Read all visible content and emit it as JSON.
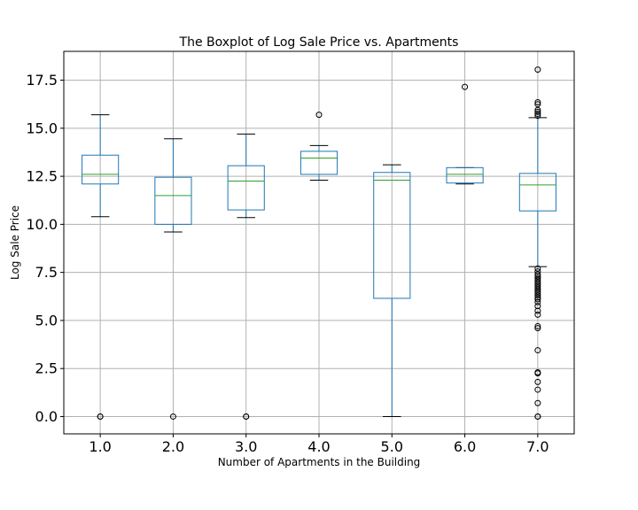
{
  "chart_data": {
    "type": "boxplot",
    "title": "The Boxplot of Log Sale Price vs. Apartments",
    "xlabel": "Number of Apartments in the Building",
    "ylabel": "Log Sale Price",
    "categories": [
      "1.0",
      "2.0",
      "3.0",
      "4.0",
      "5.0",
      "6.0",
      "7.0"
    ],
    "ylim": [
      -0.9,
      19.0
    ],
    "yticks": [
      0.0,
      2.5,
      5.0,
      7.5,
      10.0,
      12.5,
      15.0,
      17.5
    ],
    "ytick_labels": [
      "0.0",
      "2.5",
      "5.0",
      "7.5",
      "10.0",
      "12.5",
      "15.0",
      "17.5"
    ],
    "grid": true,
    "colors": {
      "box": "#1f77b4",
      "median": "#2ca02c",
      "grid": "#b0b0b0"
    },
    "boxes": [
      {
        "category": "1.0",
        "whisker_low": 10.4,
        "q1": 12.1,
        "median": 12.6,
        "q3": 13.6,
        "whisker_high": 15.7,
        "outliers": [
          0.0,
          0.0
        ]
      },
      {
        "category": "2.0",
        "whisker_low": 9.6,
        "q1": 10.0,
        "median": 11.5,
        "q3": 12.45,
        "whisker_high": 14.45,
        "outliers": [
          0.0
        ]
      },
      {
        "category": "3.0",
        "whisker_low": 10.35,
        "q1": 10.75,
        "median": 12.25,
        "q3": 13.05,
        "whisker_high": 14.7,
        "outliers": [
          0.0,
          0.0
        ]
      },
      {
        "category": "4.0",
        "whisker_low": 12.3,
        "q1": 12.6,
        "median": 13.45,
        "q3": 13.8,
        "whisker_high": 14.1,
        "outliers": [
          15.7
        ]
      },
      {
        "category": "5.0",
        "whisker_low": 0.0,
        "q1": 6.15,
        "median": 12.3,
        "q3": 12.7,
        "whisker_high": 13.1,
        "outliers": []
      },
      {
        "category": "6.0",
        "whisker_low": 12.1,
        "q1": 12.15,
        "median": 12.6,
        "q3": 12.95,
        "whisker_high": 12.95,
        "outliers": [
          17.15
        ]
      },
      {
        "category": "7.0",
        "whisker_low": 7.8,
        "q1": 10.7,
        "median": 12.05,
        "q3": 12.65,
        "whisker_high": 15.55,
        "outliers": [
          18.05,
          16.35,
          16.25,
          15.95,
          15.85,
          15.75,
          15.65,
          7.7,
          7.55,
          7.4,
          7.3,
          7.2,
          7.1,
          7.0,
          6.9,
          6.8,
          6.7,
          6.6,
          6.5,
          6.4,
          6.3,
          6.2,
          6.1,
          5.95,
          5.75,
          5.5,
          5.3,
          4.7,
          4.6,
          3.45,
          2.3,
          2.25,
          1.8,
          1.4,
          0.7,
          0.0,
          0.0
        ]
      }
    ]
  }
}
